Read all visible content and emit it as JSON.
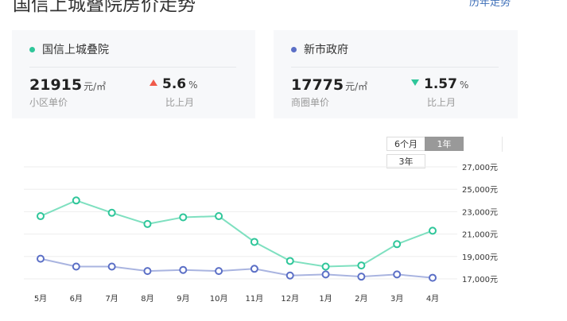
{
  "header": {
    "title": "国信上城叠院房价走势",
    "history_link": "历年走势"
  },
  "cards": [
    {
      "name": "国信上城叠院",
      "dot_color": "#2fc69a",
      "price": "21915",
      "price_unit": "元/㎡",
      "price_label": "小区单价",
      "change_value": "5.6",
      "change_unit": "%",
      "change_dir": "up",
      "change_label": "比上月"
    },
    {
      "name": "新市政府",
      "dot_color": "#5b6fc6",
      "price": "17775",
      "price_unit": "元/㎡",
      "price_label": "商圈单价",
      "change_value": "1.57",
      "change_unit": "%",
      "change_dir": "down",
      "change_label": "比上月"
    }
  ],
  "range_tabs": {
    "six_months": "6个月",
    "one_year": "1年",
    "three_years": "3年",
    "active": "1年"
  },
  "chart_data": {
    "type": "line",
    "categories": [
      "5月",
      "6月",
      "7月",
      "8月",
      "9月",
      "10月",
      "11月",
      "12月",
      "1月",
      "2月",
      "3月",
      "4月"
    ],
    "y_tick_labels": [
      "27,000元",
      "25,000元",
      "23,000元",
      "21,000元",
      "19,000元",
      "17,000元"
    ],
    "y_ticks": [
      27000,
      25000,
      23000,
      21000,
      19000,
      17000
    ],
    "ylim": [
      17000,
      27000
    ],
    "grid": true,
    "series": [
      {
        "color": "#7fe0c0",
        "marker_color": "#2fc69a",
        "values": [
          22600,
          24000,
          22900,
          21900,
          22500,
          22600,
          20300,
          18600,
          18100,
          18200,
          20100,
          21300
        ]
      },
      {
        "color": "#a9b4e0",
        "marker_color": "#5b6fc6",
        "values": [
          18800,
          18100,
          18100,
          17700,
          17800,
          17700,
          17900,
          17300,
          17400,
          17200,
          17400,
          17100
        ]
      }
    ]
  }
}
